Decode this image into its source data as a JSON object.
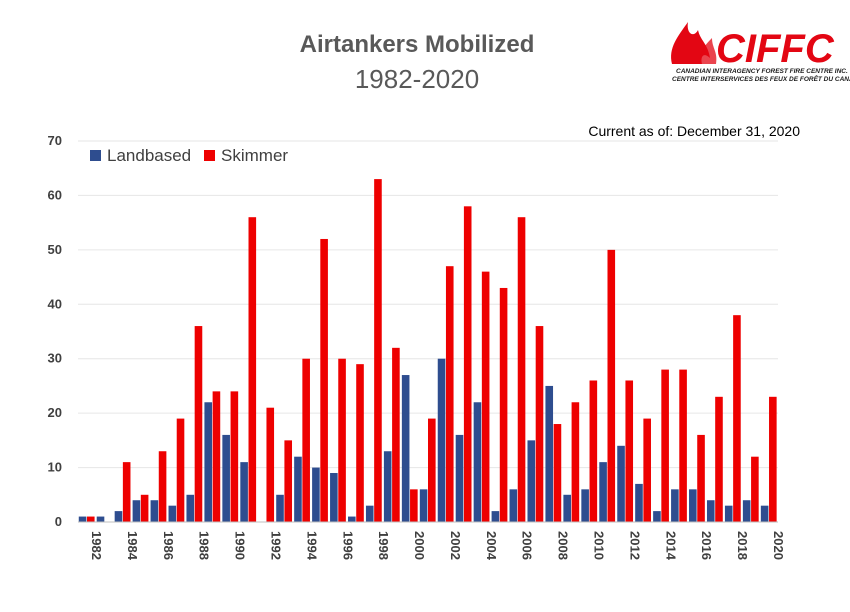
{
  "logo": {
    "wordmark": "CIFFC",
    "line1": "CANADIAN INTERAGENCY FOREST FIRE CENTRE INC.",
    "line2": "CENTRE INTERSERVICES DES FEUX DE FORÊT DU CANADA INC."
  },
  "note": "Current as of:  December 31, 2020",
  "colors": {
    "landbased": "#2e4d8f",
    "skimmer": "#ee0000"
  },
  "chart_data": {
    "type": "bar",
    "title": "Airtankers Mobilized",
    "subtitle": "1982-2020",
    "xlabel": "",
    "ylabel": "",
    "ylim": [
      0,
      70
    ],
    "yticks": [
      "0",
      "10",
      "20",
      "30",
      "40",
      "50",
      "60",
      "70"
    ],
    "grid": true,
    "legend_position": "top-left",
    "categories": [
      "1982",
      "1983",
      "1984",
      "1985",
      "1986",
      "1987",
      "1988",
      "1989",
      "1990",
      "1991",
      "1992",
      "1993",
      "1994",
      "1995",
      "1996",
      "1997",
      "1998",
      "1999",
      "2000",
      "2001",
      "2002",
      "2003",
      "2004",
      "2005",
      "2006",
      "2007",
      "2008",
      "2009",
      "2010",
      "2011",
      "2012",
      "2013",
      "2014",
      "2015",
      "2016",
      "2017",
      "2018",
      "2019",
      "2020"
    ],
    "xtick_labels": [
      "1982",
      "",
      "1984",
      "",
      "1986",
      "",
      "1988",
      "",
      "1990",
      "",
      "1992",
      "",
      "1994",
      "",
      "1996",
      "",
      "1998",
      "",
      "2000",
      "",
      "2002",
      "",
      "2004",
      "",
      "2006",
      "",
      "2008",
      "",
      "2010",
      "",
      "2012",
      "",
      "2014",
      "",
      "2016",
      "",
      "2018",
      "",
      "2020"
    ],
    "series": [
      {
        "name": "Landbased",
        "values": [
          1,
          1,
          2,
          4,
          4,
          3,
          5,
          22,
          16,
          11,
          0,
          5,
          12,
          10,
          9,
          1,
          3,
          13,
          27,
          6,
          30,
          16,
          22,
          2,
          6,
          15,
          25,
          5,
          6,
          11,
          14,
          7,
          2,
          6,
          6,
          4,
          3,
          4,
          3
        ]
      },
      {
        "name": "Skimmer",
        "values": [
          1,
          0,
          11,
          5,
          13,
          19,
          36,
          24,
          24,
          56,
          21,
          15,
          30,
          52,
          30,
          29,
          63,
          32,
          6,
          19,
          47,
          58,
          46,
          43,
          56,
          36,
          18,
          22,
          26,
          50,
          26,
          19,
          28,
          28,
          16,
          23,
          38,
          12,
          23
        ]
      }
    ]
  }
}
